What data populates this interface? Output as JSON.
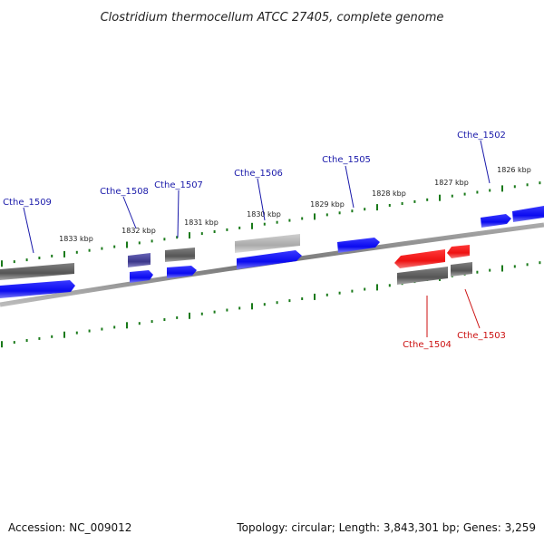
{
  "title": "Clostridium thermocellum ATCC 27405, complete genome",
  "footer": {
    "accession": "Accession: NC_009012",
    "summary": "Topology: circular; Length: 3,843,301 bp; Genes: 3,259"
  },
  "colors": {
    "forward_gene": "#0a0af0",
    "reverse_gene": "#ee1111",
    "other_feature": "#666666",
    "tick": "#1a7a1a",
    "backbone": "#888888",
    "forward_label": "#1a1aaa",
    "reverse_label": "#cc1111"
  },
  "ticks": [
    "1833 kbp",
    "1832 kbp",
    "1831 kbp",
    "1830 kbp",
    "1829 kbp",
    "1828 kbp",
    "1827 kbp",
    "1826 kbp"
  ],
  "genes": [
    {
      "id": "Cthe_1509",
      "strand": "forward"
    },
    {
      "id": "Cthe_1508",
      "strand": "forward"
    },
    {
      "id": "Cthe_1507",
      "strand": "forward"
    },
    {
      "id": "Cthe_1506",
      "strand": "forward"
    },
    {
      "id": "Cthe_1505",
      "strand": "forward"
    },
    {
      "id": "Cthe_1504",
      "strand": "reverse"
    },
    {
      "id": "Cthe_1503",
      "strand": "reverse"
    },
    {
      "id": "Cthe_1502",
      "strand": "forward"
    }
  ]
}
